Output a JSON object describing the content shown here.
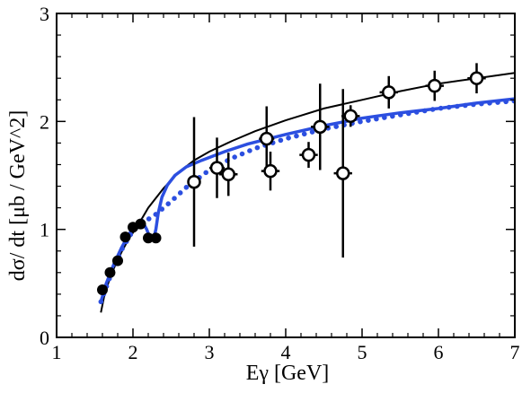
{
  "chart_data": {
    "type": "line",
    "xlabel": "Eγ [GeV]",
    "ylabel": "dσ/ dt [μb / GeV^2]",
    "xlim": [
      1,
      7
    ],
    "ylim": [
      0,
      3
    ],
    "x_ticks": [
      "1",
      "2",
      "3",
      "4",
      "5",
      "6",
      "7"
    ],
    "y_ticks": [
      "0",
      "1",
      "2",
      "3"
    ],
    "grid": false,
    "legend": "none",
    "colors": {
      "black": "#000000",
      "blue": "#2c4fe0"
    },
    "series": [
      {
        "style": "solid-black-line",
        "x": [
          1.58,
          1.62,
          1.68,
          1.75,
          1.85,
          1.95,
          2.05,
          2.2,
          2.4,
          2.6,
          2.8,
          3.0,
          3.3,
          3.6,
          4.0,
          4.5,
          5.0,
          5.5,
          6.0,
          6.5,
          7.0
        ],
        "y": [
          0.23,
          0.37,
          0.51,
          0.64,
          0.79,
          0.92,
          1.02,
          1.2,
          1.38,
          1.53,
          1.64,
          1.72,
          1.82,
          1.91,
          2.01,
          2.12,
          2.2,
          2.28,
          2.35,
          2.4,
          2.45
        ]
      },
      {
        "style": "solid-blue-line",
        "x": [
          1.58,
          1.65,
          1.75,
          1.85,
          1.95,
          2.05,
          2.12,
          2.18,
          2.22,
          2.27,
          2.3,
          2.33,
          2.38,
          2.45,
          2.55,
          2.7,
          2.9,
          3.2,
          3.5,
          4.0,
          4.5,
          5.0,
          5.5,
          6.0,
          6.5,
          7.0
        ],
        "y": [
          0.33,
          0.5,
          0.68,
          0.83,
          0.96,
          1.05,
          1.08,
          1.0,
          0.93,
          0.91,
          1.0,
          1.15,
          1.3,
          1.41,
          1.5,
          1.58,
          1.64,
          1.72,
          1.79,
          1.88,
          1.96,
          2.03,
          2.08,
          2.12,
          2.17,
          2.21
        ]
      },
      {
        "style": "dotted-blue-line",
        "x": [
          1.58,
          1.7,
          1.85,
          2.0,
          2.15,
          2.3,
          2.5,
          2.7,
          3.0,
          3.3,
          3.6,
          4.0,
          4.5,
          5.0,
          5.5,
          6.0,
          6.5,
          7.0
        ],
        "y": [
          0.33,
          0.56,
          0.81,
          0.99,
          1.07,
          1.14,
          1.26,
          1.39,
          1.55,
          1.66,
          1.75,
          1.84,
          1.93,
          2.0,
          2.06,
          2.12,
          2.16,
          2.19
        ]
      }
    ],
    "filled_points": [
      {
        "x": 1.6,
        "y": 0.44
      },
      {
        "x": 1.7,
        "y": 0.6
      },
      {
        "x": 1.8,
        "y": 0.71
      },
      {
        "x": 1.9,
        "y": 0.93
      },
      {
        "x": 2.0,
        "y": 1.02
      },
      {
        "x": 2.1,
        "y": 1.05
      },
      {
        "x": 2.2,
        "y": 0.92
      },
      {
        "x": 2.3,
        "y": 0.92
      }
    ],
    "open_points": [
      {
        "x": 2.8,
        "y": 1.44,
        "yerr": 0.6,
        "xerr": 0.05
      },
      {
        "x": 3.1,
        "y": 1.57,
        "yerr": 0.28,
        "xerr": 0.1
      },
      {
        "x": 3.25,
        "y": 1.51,
        "yerr": 0.2,
        "xerr": 0.12
      },
      {
        "x": 3.75,
        "y": 1.84,
        "yerr": 0.3,
        "xerr": 0.1
      },
      {
        "x": 3.8,
        "y": 1.54,
        "yerr": 0.18,
        "xerr": 0.12
      },
      {
        "x": 4.3,
        "y": 1.69,
        "yerr": 0.12,
        "xerr": 0.12
      },
      {
        "x": 4.45,
        "y": 1.95,
        "yerr": 0.4,
        "xerr": 0.12
      },
      {
        "x": 4.75,
        "y": 1.52,
        "yerr": 0.78,
        "xerr": 0.12
      },
      {
        "x": 4.85,
        "y": 2.05,
        "yerr": 0.1,
        "xerr": 0.12
      },
      {
        "x": 5.35,
        "y": 2.27,
        "yerr": 0.15,
        "xerr": 0.12
      },
      {
        "x": 5.95,
        "y": 2.33,
        "yerr": 0.14,
        "xerr": 0.12
      },
      {
        "x": 6.5,
        "y": 2.4,
        "yerr": 0.14,
        "xerr": 0.12
      }
    ]
  }
}
